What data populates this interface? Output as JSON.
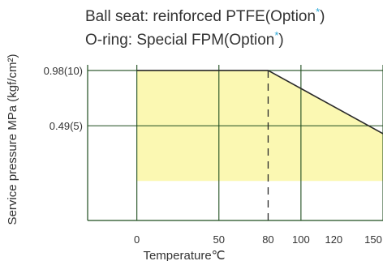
{
  "header": {
    "line1_text": "Ball seat: reinforced PTFE(Option",
    "line2_text": "O-ring: Special FPM(Option",
    "asterisk": "*",
    "close_paren": ")"
  },
  "colors": {
    "fill": "#fbf8b2",
    "grid": "#1f4d1f",
    "boundary": "#2a2a2a",
    "asterisk": "#2aa7d8",
    "text": "#333333"
  },
  "chart_data": {
    "type": "area",
    "title": "",
    "xlabel": "Temperature℃",
    "ylabel": "Service pressure MPa (kgf/cm²)",
    "xlim": [
      -30,
      150
    ],
    "ylim": [
      -0.35,
      1.03
    ],
    "x_ticks": [
      {
        "value": 0,
        "label": "0"
      },
      {
        "value": 50,
        "label": "50"
      },
      {
        "value": 80,
        "label": "80"
      },
      {
        "value": 100,
        "label": "100"
      },
      {
        "value": 120,
        "label": "120"
      },
      {
        "value": 150,
        "label": "150"
      }
    ],
    "y_ticks": [
      {
        "value": 0.98,
        "label": "0.98(10)"
      },
      {
        "value": 0.49,
        "label": "0.49(5)"
      }
    ],
    "vertical_gridlines": [
      0,
      50,
      100,
      150
    ],
    "horizontal_gridlines": [
      0.98,
      0.49
    ],
    "dashed_reference_x": 80,
    "series": [
      {
        "x": [
          0,
          80,
          150
        ],
        "y": [
          0.98,
          0.98,
          0.42
        ]
      }
    ],
    "fill_to": 0,
    "grid": true
  }
}
